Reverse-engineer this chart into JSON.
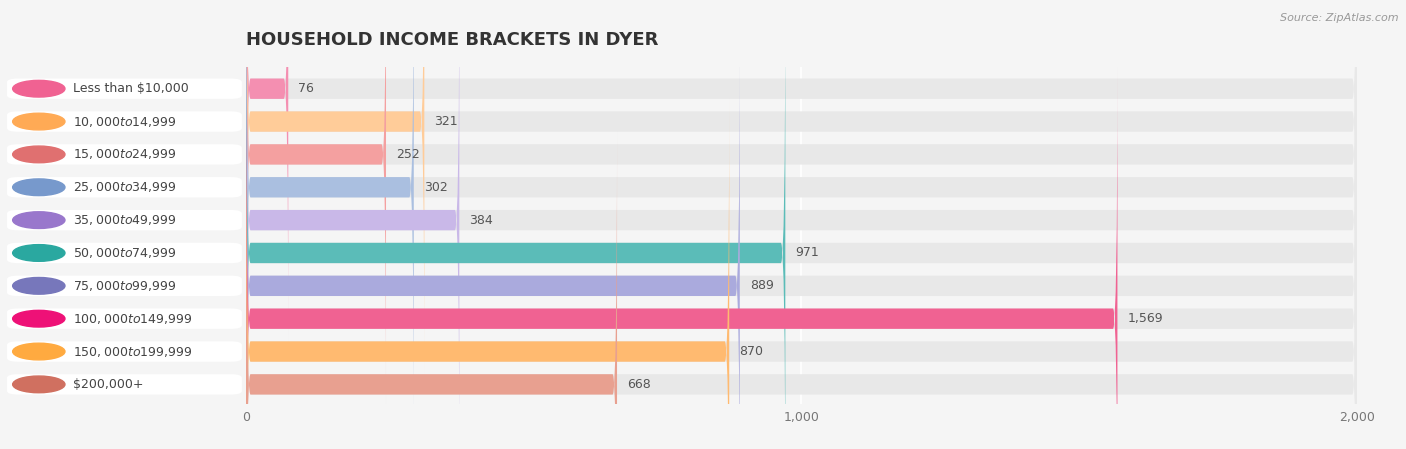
{
  "title": "HOUSEHOLD INCOME BRACKETS IN DYER",
  "source": "Source: ZipAtlas.com",
  "categories": [
    "Less than $10,000",
    "$10,000 to $14,999",
    "$15,000 to $24,999",
    "$25,000 to $34,999",
    "$35,000 to $49,999",
    "$50,000 to $74,999",
    "$75,000 to $99,999",
    "$100,000 to $149,999",
    "$150,000 to $199,999",
    "$200,000+"
  ],
  "values": [
    76,
    321,
    252,
    302,
    384,
    971,
    889,
    1569,
    870,
    668
  ],
  "bar_colors": [
    "#F48FB1",
    "#FFCC99",
    "#F4A0A0",
    "#AABFE0",
    "#C9B8E8",
    "#5BBCB8",
    "#AAAADD",
    "#F06292",
    "#FFBA70",
    "#E8A090"
  ],
  "icon_colors": [
    "#F06292",
    "#FFAA55",
    "#E07070",
    "#7799CC",
    "#9977CC",
    "#2AA8A0",
    "#7777BB",
    "#EE1177",
    "#FFAA40",
    "#D07060"
  ],
  "xlim": [
    0,
    2000
  ],
  "xticks": [
    0,
    1000,
    2000
  ],
  "background_color": "#f5f5f5",
  "bar_bg_color": "#e8e8e8",
  "title_fontsize": 13,
  "label_fontsize": 9,
  "value_fontsize": 9
}
